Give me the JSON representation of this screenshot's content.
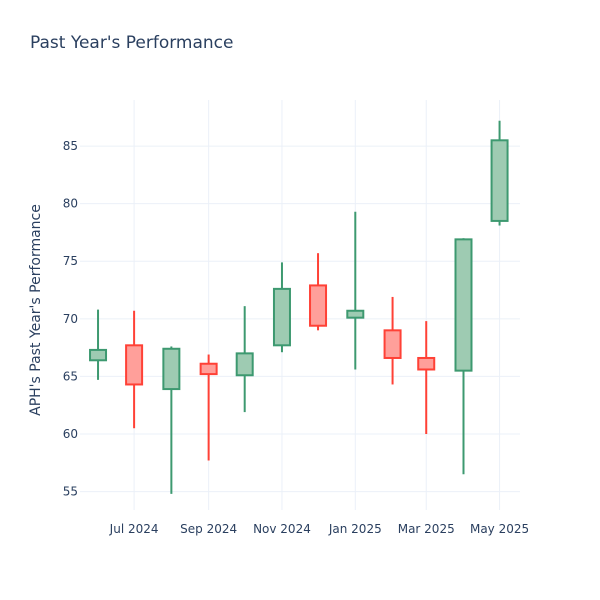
{
  "chart_data": {
    "type": "candlestick",
    "title": "Past Year's Performance",
    "xlabel": "",
    "ylabel": "APH's Past Year's Performance",
    "ylim": [
      53.4,
      89.0
    ],
    "yticks": [
      55,
      60,
      65,
      70,
      75,
      80,
      85
    ],
    "grid": true,
    "xticks": [
      {
        "label": "Jul 2024",
        "date": "2024-07-01"
      },
      {
        "label": "Sep 2024",
        "date": "2024-09-01"
      },
      {
        "label": "Nov 2024",
        "date": "2024-11-01"
      },
      {
        "label": "Jan 2025",
        "date": "2025-01-01"
      },
      {
        "label": "Mar 2025",
        "date": "2025-03-01"
      },
      {
        "label": "May 2025",
        "date": "2025-05-01"
      }
    ],
    "candles": [
      {
        "date": "2024-06-01",
        "open": 66.4,
        "high": 70.8,
        "low": 64.7,
        "close": 67.3
      },
      {
        "date": "2024-07-01",
        "open": 67.7,
        "high": 70.7,
        "low": 60.5,
        "close": 64.3
      },
      {
        "date": "2024-08-01",
        "open": 63.9,
        "high": 67.6,
        "low": 54.8,
        "close": 67.4
      },
      {
        "date": "2024-09-01",
        "open": 66.1,
        "high": 66.9,
        "low": 57.7,
        "close": 65.2
      },
      {
        "date": "2024-10-01",
        "open": 65.1,
        "high": 71.1,
        "low": 61.9,
        "close": 67.0
      },
      {
        "date": "2024-11-01",
        "open": 67.7,
        "high": 74.9,
        "low": 67.1,
        "close": 72.6
      },
      {
        "date": "2024-12-01",
        "open": 72.9,
        "high": 75.7,
        "low": 69.0,
        "close": 69.4
      },
      {
        "date": "2025-01-01",
        "open": 70.1,
        "high": 79.3,
        "low": 65.6,
        "close": 70.7
      },
      {
        "date": "2025-02-01",
        "open": 69.0,
        "high": 71.9,
        "low": 64.3,
        "close": 66.6
      },
      {
        "date": "2025-03-01",
        "open": 66.6,
        "high": 69.8,
        "low": 60.0,
        "close": 65.6
      },
      {
        "date": "2025-04-01",
        "open": 65.5,
        "high": 77.0,
        "low": 56.5,
        "close": 76.9
      },
      {
        "date": "2025-05-01",
        "open": 78.5,
        "high": 87.2,
        "low": 78.1,
        "close": 85.5
      }
    ],
    "colors": {
      "up_line": "#3d9970",
      "up_fill": "#9ecbb2",
      "down_line": "#ff4136",
      "down_fill": "#ff9f9a",
      "grid": "#ebf0f8",
      "text": "#2a3f5f"
    }
  }
}
